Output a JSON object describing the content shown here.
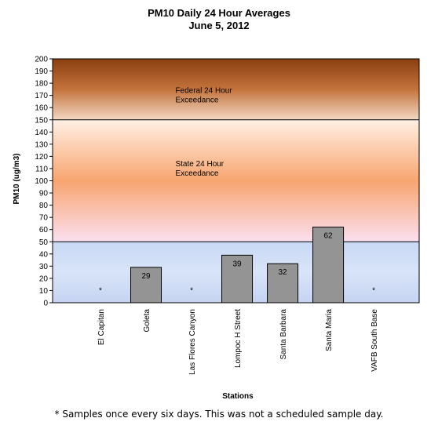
{
  "chart_data": {
    "type": "bar",
    "title": "PM10  Daily 24  Hour Averages",
    "subtitle": "June 5, 2012",
    "xlabel": "Stations",
    "ylabel": "PM10  (ug/m3)",
    "ylim": [
      0,
      200
    ],
    "ytick_step": 10,
    "categories": [
      "El Capitan",
      "Goleta",
      "Las Flores Canyon",
      "Lompoc H Street",
      "Santa Barbara",
      "Santa Maria",
      "VAFB South Base"
    ],
    "values": [
      null,
      29,
      null,
      39,
      32,
      62,
      null
    ],
    "data_labels": [
      "*",
      "29",
      "*",
      "39",
      "32",
      "62",
      "*"
    ],
    "bands": [
      {
        "from": 150,
        "to": 200,
        "label": "Federal 24 Hour Exceedance",
        "colors": [
          "#8a3f10",
          "#c4733c",
          "#f2d8c4"
        ]
      },
      {
        "from": 50,
        "to": 150,
        "label": "State 24 Hour Exceedance",
        "colors": [
          "#fff0e4",
          "#f8a570",
          "#fbe0f0"
        ]
      },
      {
        "from": 0,
        "to": 50,
        "label": "",
        "colors": [
          "#c8d8f4",
          "#d8e4f8",
          "#c6d4f2"
        ]
      }
    ],
    "bar_color": "#949494",
    "grid": false,
    "legend": "none"
  },
  "footnote": "* Samples once every six days.  This was not a scheduled sample day."
}
